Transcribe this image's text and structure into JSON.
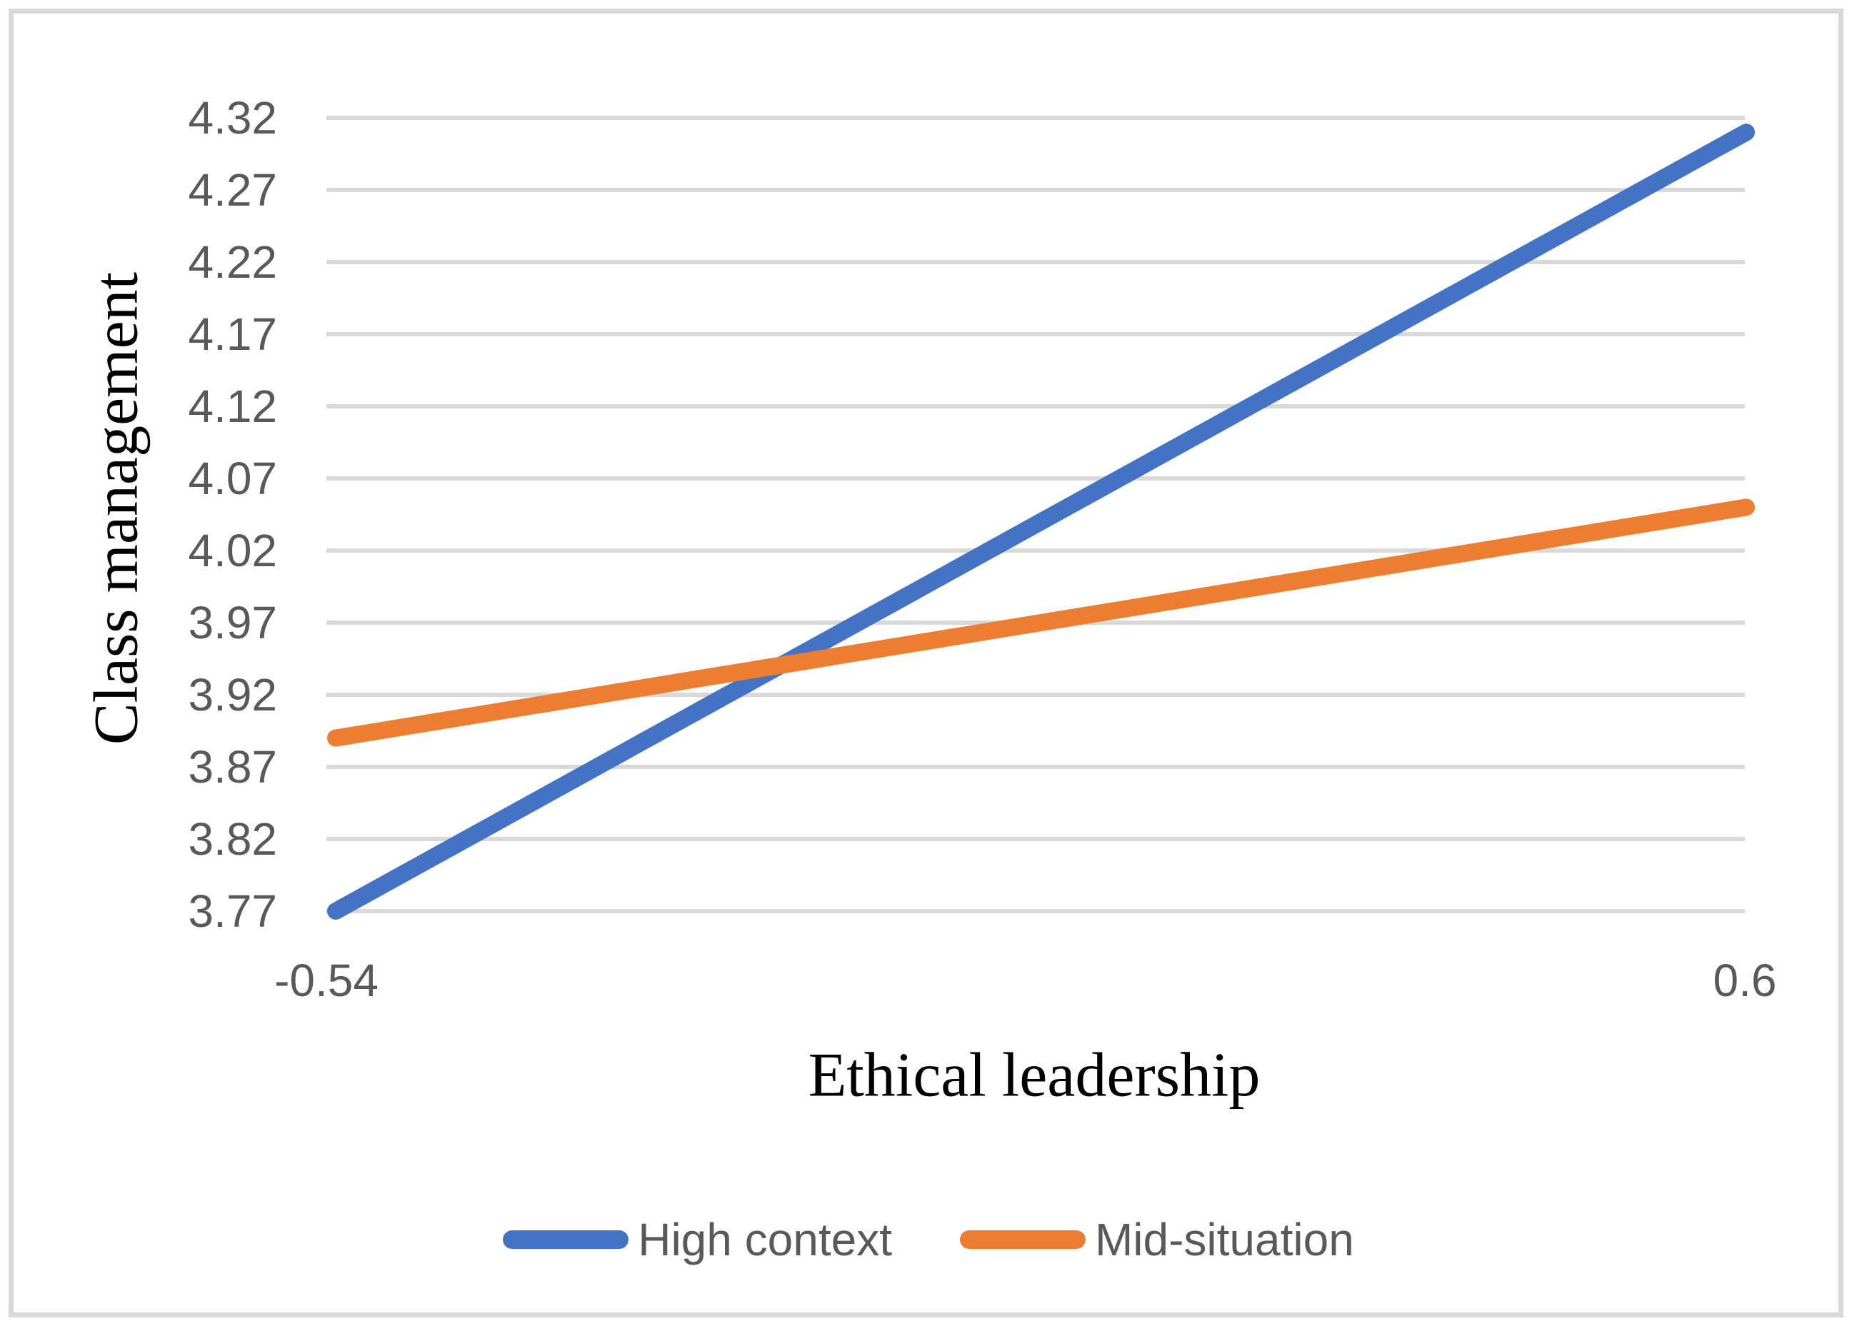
{
  "figure": {
    "background_color": "#ffffff",
    "border_color": "#d9d9d9"
  },
  "chart_data": {
    "type": "line",
    "title": "",
    "xlabel": "Ethical leadership",
    "ylabel": "Class management",
    "x_categories": [
      "-0.54",
      "0.6"
    ],
    "series": [
      {
        "name": "High context",
        "color": "#4472C4",
        "values": [
          3.77,
          4.31
        ]
      },
      {
        "name": "Mid-situation",
        "color": "#ED7D31",
        "values": [
          3.89,
          4.05
        ]
      }
    ],
    "ylim": [
      3.77,
      4.32
    ],
    "y_tick_step": 0.05,
    "y_ticks": [
      "3.77",
      "3.82",
      "3.87",
      "3.92",
      "3.97",
      "4.02",
      "4.07",
      "4.12",
      "4.17",
      "4.22",
      "4.27",
      "4.32"
    ],
    "grid": "horizontal",
    "gridline_color": "#d9d9d9",
    "tick_label_color": "#595959",
    "legend_position": "bottom-center"
  }
}
